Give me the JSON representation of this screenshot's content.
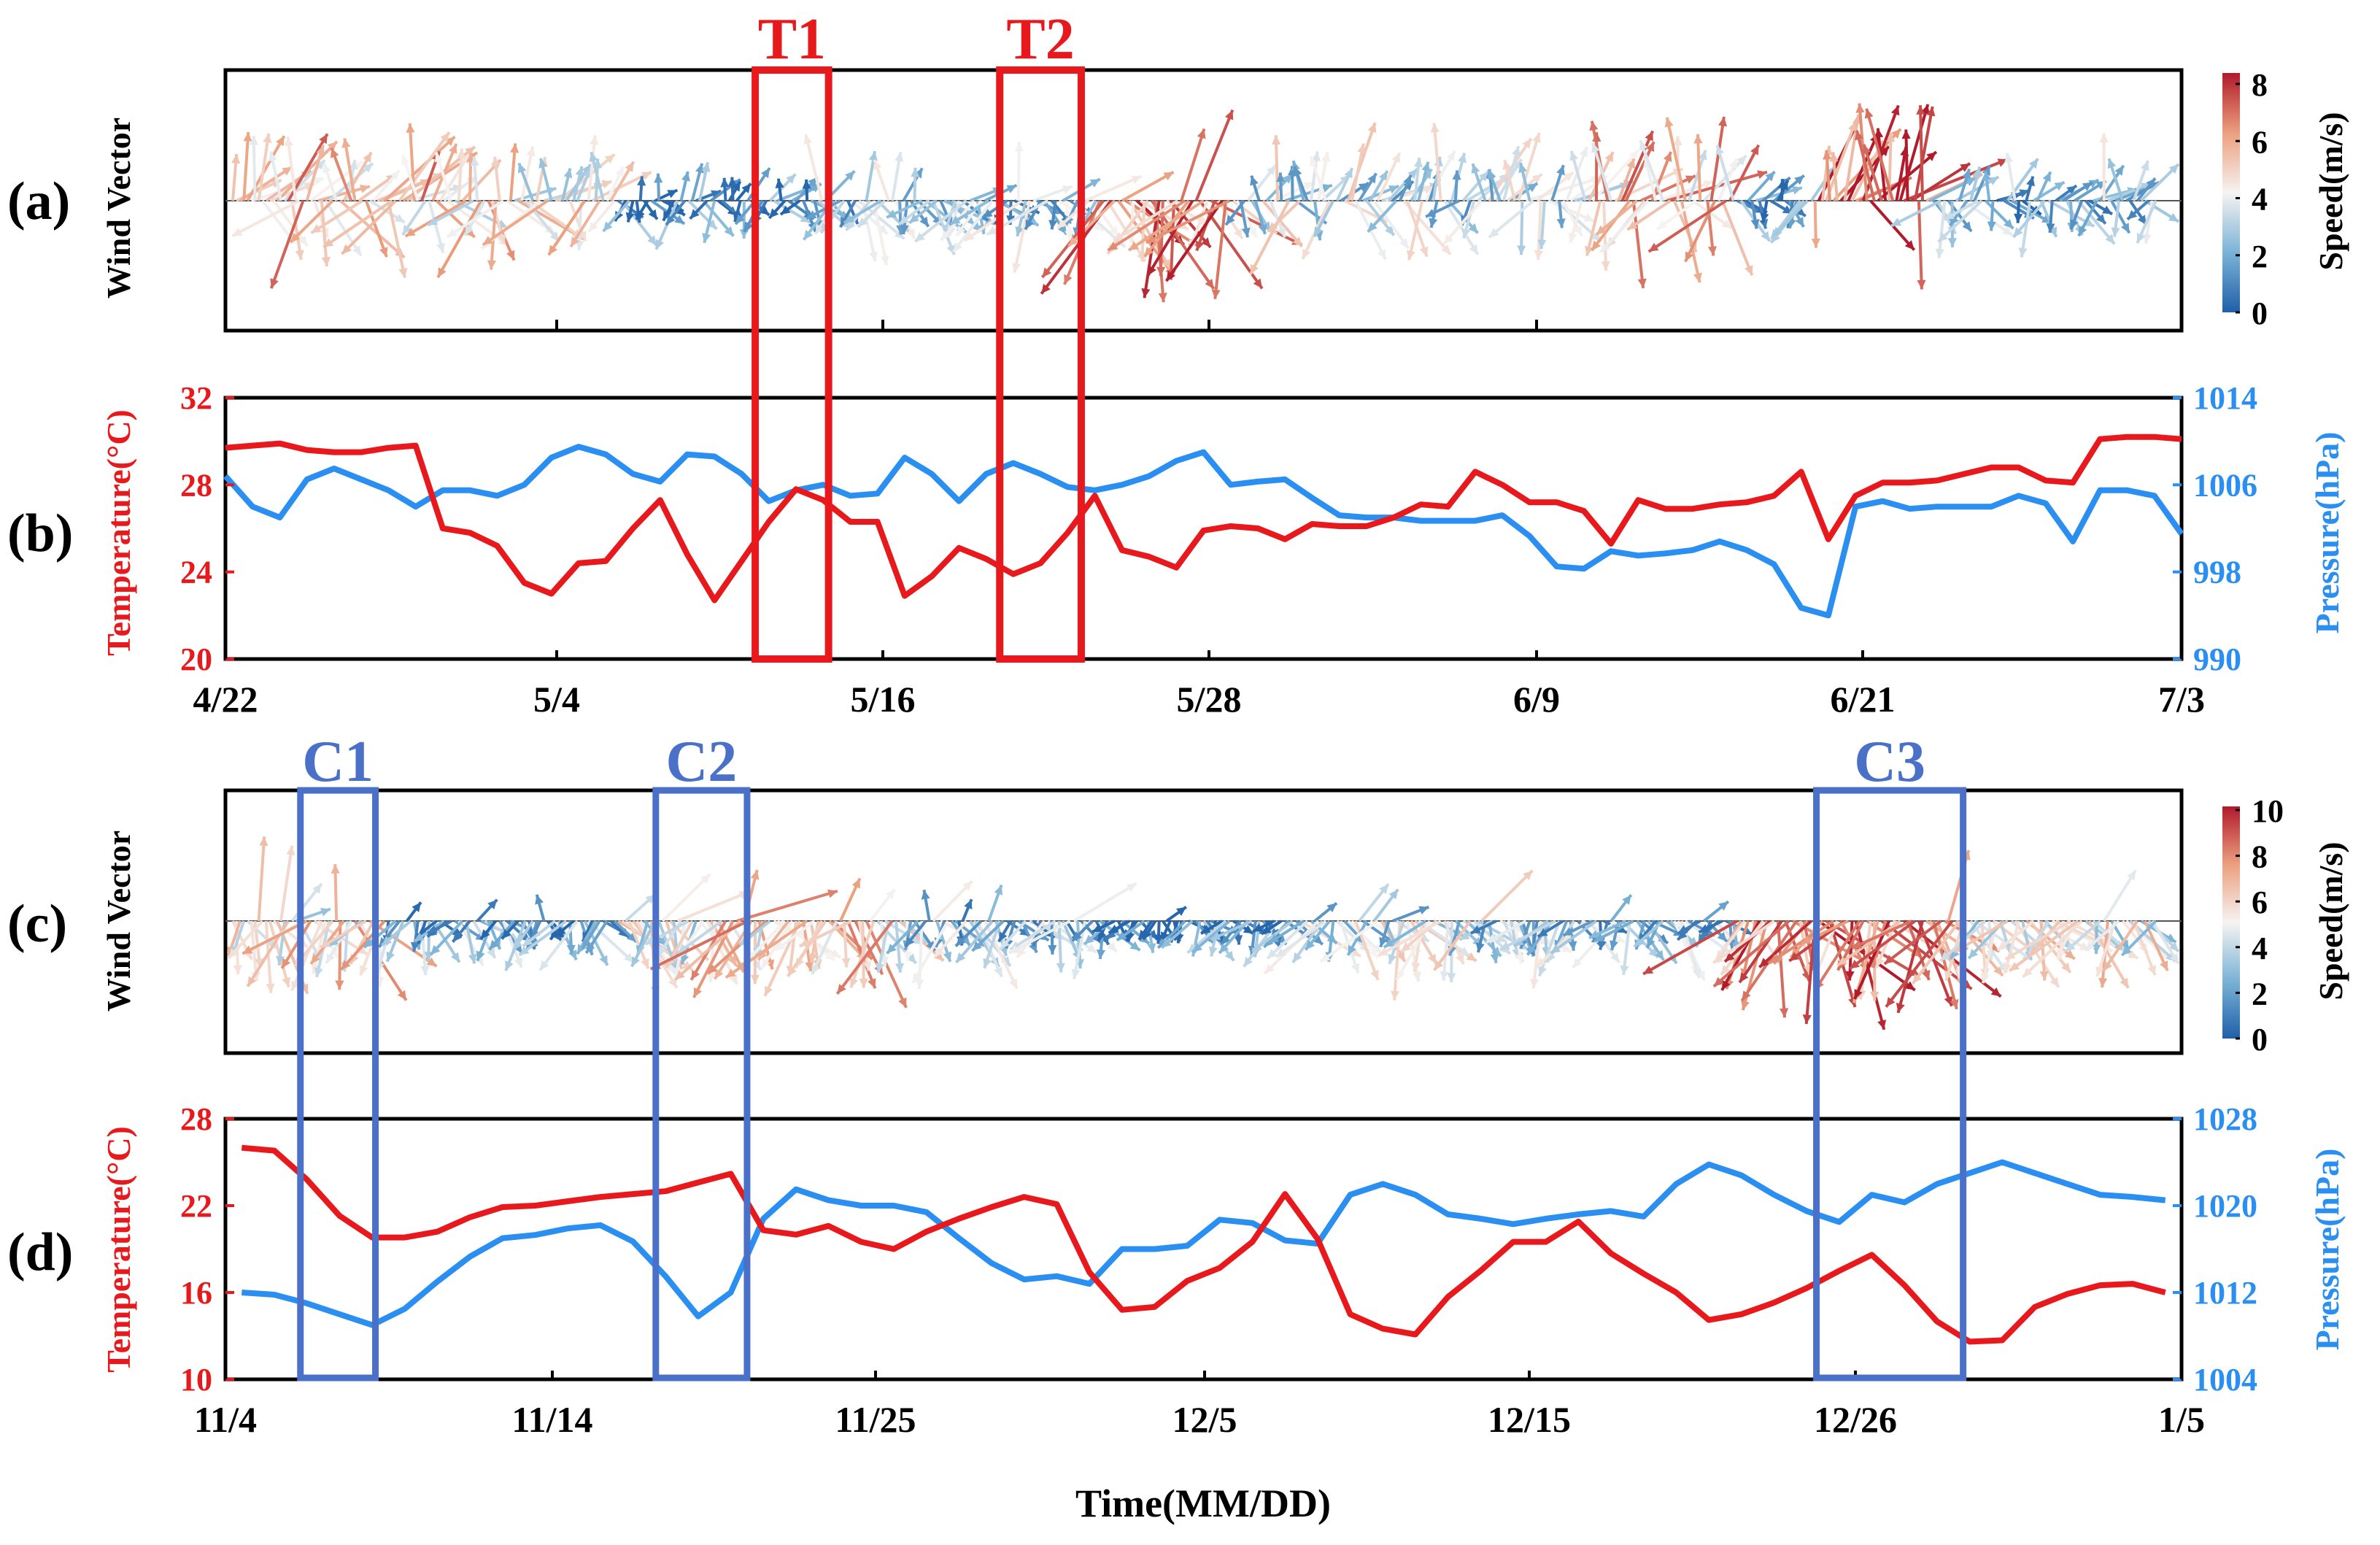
{
  "chart_data": [
    {
      "id": "a",
      "type": "wind-vector",
      "panel_label": "(a)",
      "ylabel": "Wind Vector",
      "colorbar_label": "Speed(m/s)",
      "colorbar_ticks": [
        "0",
        "2",
        "4",
        "6",
        "8"
      ],
      "colorbar_range": [
        0,
        8
      ],
      "x_tick_labels": [
        "4/22",
        "5/4",
        "5/16",
        "5/28",
        "6/9",
        "6/21",
        "7/3"
      ],
      "events": [
        {
          "label": "T1",
          "x_range": [
            19.5,
            22.2
          ],
          "color": "#e8191c"
        },
        {
          "label": "T2",
          "x_range": [
            28.5,
            31.5
          ],
          "color": "#e8191c"
        }
      ]
    },
    {
      "id": "b",
      "type": "line",
      "panel_label": "(b)",
      "ylabel_left": "Temperature(°C)",
      "ylabel_right": "Pressure(hPa)",
      "y_left_ticks": [
        "20",
        "24",
        "28",
        "32"
      ],
      "y_right_ticks": [
        "990",
        "998",
        "1006",
        "1014"
      ],
      "ylim_left": [
        20,
        32
      ],
      "ylim_right": [
        990,
        1014
      ],
      "x_tick_labels": [
        "4/22",
        "5/4",
        "5/16",
        "5/28",
        "6/9",
        "6/21",
        "7/3"
      ],
      "xlim": [
        0,
        72
      ],
      "series": [
        {
          "name": "Temperature(°C)",
          "axis": "left",
          "color": "#e8191c",
          "x": [
            0,
            1,
            2,
            3,
            4,
            5,
            6,
            7,
            8,
            9,
            10,
            11,
            12,
            13,
            14,
            15,
            16,
            17,
            18,
            19,
            20,
            21,
            22,
            23,
            24,
            25,
            26,
            27,
            28,
            29,
            30,
            31,
            32,
            33,
            34,
            35,
            36,
            37,
            38,
            39,
            40,
            41,
            42,
            43,
            44,
            45,
            46,
            47,
            48,
            49,
            50,
            51,
            52,
            53,
            54,
            55,
            56,
            57,
            58,
            59,
            60,
            61,
            62,
            63,
            64,
            65,
            66,
            67,
            68,
            69,
            70,
            71,
            72
          ],
          "values": [
            29.7,
            29.8,
            29.9,
            29.6,
            29.5,
            29.5,
            29.7,
            29.8,
            26.0,
            25.8,
            25.2,
            23.5,
            23.0,
            24.4,
            24.5,
            26.0,
            27.3,
            24.8,
            22.7,
            24.5,
            26.3,
            27.8,
            27.3,
            26.3,
            26.3,
            22.9,
            23.8,
            25.1,
            24.6,
            23.9,
            24.4,
            25.8,
            27.5,
            25.0,
            24.7,
            24.2,
            25.9,
            26.1,
            26.0,
            25.5,
            26.2,
            26.1,
            26.1,
            26.5,
            27.1,
            27.0,
            28.6,
            28.0,
            27.2,
            27.2,
            26.8,
            25.3,
            27.3,
            26.9,
            26.9,
            27.1,
            27.2,
            27.5,
            28.6,
            25.5,
            27.5,
            28.1,
            28.1,
            28.2,
            28.5,
            28.8,
            28.8,
            28.2,
            28.1,
            30.1,
            30.2,
            30.2,
            30.1
          ]
        },
        {
          "name": "Pressure(hPa)",
          "axis": "right",
          "color": "#2a8ff0",
          "x": [
            0,
            1,
            2,
            3,
            4,
            5,
            6,
            7,
            8,
            9,
            10,
            11,
            12,
            13,
            14,
            15,
            16,
            17,
            18,
            19,
            20,
            21,
            22,
            23,
            24,
            25,
            26,
            27,
            28,
            29,
            30,
            31,
            32,
            33,
            34,
            35,
            36,
            37,
            38,
            39,
            40,
            41,
            42,
            43,
            44,
            45,
            46,
            47,
            48,
            49,
            50,
            51,
            52,
            53,
            54,
            55,
            56,
            57,
            58,
            59,
            60,
            61,
            62,
            63,
            64,
            65,
            66,
            67,
            68,
            69,
            70,
            71,
            72
          ],
          "values": [
            1006.8,
            1004.0,
            1003.0,
            1006.5,
            1007.5,
            1006.5,
            1005.5,
            1004.0,
            1005.5,
            1005.5,
            1005.0,
            1006.0,
            1008.5,
            1009.5,
            1008.8,
            1007.0,
            1006.3,
            1008.8,
            1008.6,
            1007.0,
            1004.5,
            1005.5,
            1006.0,
            1005.0,
            1005.2,
            1008.5,
            1007.0,
            1004.5,
            1007.0,
            1008.0,
            1007.0,
            1005.8,
            1005.5,
            1006.0,
            1006.8,
            1008.2,
            1009.0,
            1006.0,
            1006.3,
            1006.5,
            1004.8,
            1003.2,
            1003.0,
            1003.0,
            1002.7,
            1002.7,
            1002.7,
            1003.2,
            1001.3,
            998.5,
            998.3,
            999.9,
            999.5,
            999.7,
            1000.0,
            1000.8,
            1000.0,
            998.7,
            994.7,
            994.0,
            1004.0,
            1004.5,
            1003.8,
            1004.0,
            1004.0,
            1004.0,
            1005.0,
            1004.3,
            1000.8,
            1005.5,
            1005.5,
            1005.0,
            1001.5
          ]
        }
      ]
    },
    {
      "id": "c",
      "type": "wind-vector",
      "panel_label": "(c)",
      "ylabel": "Wind Vector",
      "colorbar_label": "Speed(m/s)",
      "colorbar_ticks": [
        "0",
        "2",
        "4",
        "6",
        "8",
        "10"
      ],
      "colorbar_range": [
        0,
        10
      ],
      "x_tick_labels": [
        "11/4",
        "11/14",
        "11/25",
        "12/5",
        "12/15",
        "12/26",
        "1/5"
      ],
      "events": [
        {
          "label": "C1",
          "x_range": [
            2.3,
            4.6
          ],
          "color": "#4a70c8"
        },
        {
          "label": "C2",
          "x_range": [
            13.2,
            16.0
          ],
          "color": "#4a70c8"
        },
        {
          "label": "C3",
          "x_range": [
            48.8,
            53.3
          ],
          "color": "#4a70c8"
        }
      ]
    },
    {
      "id": "d",
      "type": "line",
      "panel_label": "(d)",
      "ylabel_left": "Temperature(°C)",
      "ylabel_right": "Pressure(hPa)",
      "xlabel": "Time(MM/DD)",
      "y_left_ticks": [
        "10",
        "16",
        "22",
        "28"
      ],
      "y_right_ticks": [
        "1004",
        "1012",
        "1020",
        "1028"
      ],
      "ylim_left": [
        10,
        28
      ],
      "ylim_right": [
        1004,
        1028
      ],
      "x_tick_labels": [
        "11/4",
        "11/14",
        "11/25",
        "12/5",
        "12/15",
        "12/26",
        "1/5"
      ],
      "xlim": [
        0,
        60
      ],
      "series": [
        {
          "name": "Temperature(°C)",
          "axis": "left",
          "color": "#e8191c",
          "x": [
            0.5,
            1.5,
            2.5,
            3.5,
            4.5,
            5.5,
            6.5,
            7.5,
            8.5,
            9.5,
            10.5,
            11.5,
            12.5,
            13.5,
            14.5,
            15.5,
            16.5,
            17.5,
            18.5,
            19.5,
            20.5,
            21.5,
            22.5,
            23.5,
            24.5,
            25.5,
            26.5,
            27.5,
            28.5,
            29.5,
            30.5,
            31.5,
            32.5,
            33.5,
            34.5,
            35.5,
            36.5,
            37.5,
            38.5,
            39.5,
            40.5,
            41.5,
            42.5,
            43.5,
            44.5,
            45.5,
            46.5,
            47.5,
            48.5,
            49.5,
            50.5,
            51.5,
            52.5,
            53.5,
            54.5,
            55.5,
            56.5,
            57.5,
            58.5,
            59.5
          ],
          "values": [
            26.0,
            25.8,
            23.8,
            21.3,
            19.8,
            19.8,
            20.2,
            21.2,
            21.9,
            22.0,
            22.3,
            22.6,
            22.8,
            23.0,
            23.6,
            24.2,
            20.3,
            20.0,
            20.6,
            19.5,
            19.0,
            20.2,
            21.1,
            21.9,
            22.6,
            22.1,
            17.4,
            14.8,
            15.0,
            16.8,
            17.7,
            19.5,
            22.8,
            19.7,
            14.5,
            13.5,
            13.1,
            15.7,
            17.5,
            19.5,
            19.5,
            20.9,
            18.7,
            17.3,
            16.0,
            14.1,
            14.5,
            15.3,
            16.3,
            17.5,
            18.6,
            16.5,
            14.0,
            12.6,
            12.7,
            15.0,
            15.9,
            16.5,
            16.6,
            16.0
          ]
        },
        {
          "name": "Pressure(hPa)",
          "axis": "right",
          "color": "#2a8ff0",
          "x": [
            0.5,
            1.5,
            2.5,
            3.5,
            4.5,
            5.5,
            6.5,
            7.5,
            8.5,
            9.5,
            10.5,
            11.5,
            12.5,
            13.5,
            14.5,
            15.5,
            16.5,
            17.5,
            18.5,
            19.5,
            20.5,
            21.5,
            22.5,
            23.5,
            24.5,
            25.5,
            26.5,
            27.5,
            28.5,
            29.5,
            30.5,
            31.5,
            32.5,
            33.5,
            34.5,
            35.5,
            36.5,
            37.5,
            38.5,
            39.5,
            40.5,
            41.5,
            42.5,
            43.5,
            44.5,
            45.5,
            46.5,
            47.5,
            48.5,
            49.5,
            50.5,
            51.5,
            52.5,
            53.5,
            54.5,
            55.5,
            56.5,
            57.5,
            58.5,
            59.5
          ],
          "values": [
            1012.0,
            1011.8,
            1011.0,
            1010.0,
            1009.0,
            1010.5,
            1013.0,
            1015.3,
            1017.0,
            1017.3,
            1017.9,
            1018.2,
            1016.7,
            1013.5,
            1009.8,
            1012.0,
            1018.8,
            1021.5,
            1020.5,
            1020.0,
            1020.0,
            1019.4,
            1017.0,
            1014.7,
            1013.2,
            1013.5,
            1012.8,
            1016.0,
            1016.0,
            1016.3,
            1018.7,
            1018.4,
            1016.8,
            1016.5,
            1021.0,
            1022.0,
            1021.0,
            1019.2,
            1018.8,
            1018.3,
            1018.8,
            1019.2,
            1019.5,
            1019.0,
            1022.0,
            1023.8,
            1022.8,
            1021.0,
            1019.5,
            1018.5,
            1021.0,
            1020.3,
            1022.0,
            1023.0,
            1024.0,
            1023.0,
            1022.0,
            1021.0,
            1020.8,
            1020.5
          ]
        }
      ]
    }
  ]
}
